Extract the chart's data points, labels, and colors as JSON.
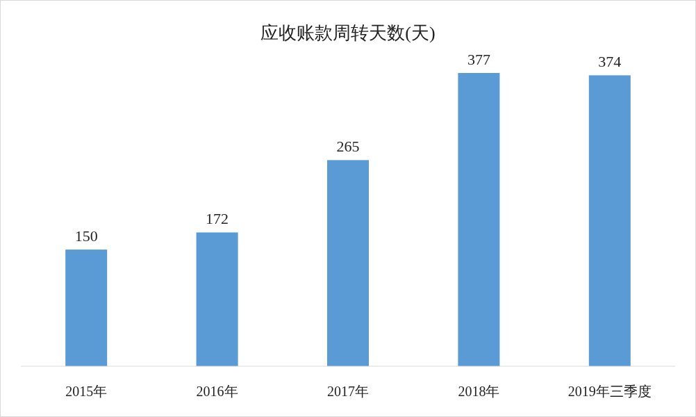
{
  "chart_data": {
    "type": "bar",
    "title": "应收账款周转天数(天)",
    "categories": [
      "2015年",
      "2016年",
      "2017年",
      "2018年",
      "2019年三季度"
    ],
    "values": [
      150,
      172,
      265,
      377,
      374
    ],
    "color": "#5b9bd5",
    "data_labels": true
  }
}
